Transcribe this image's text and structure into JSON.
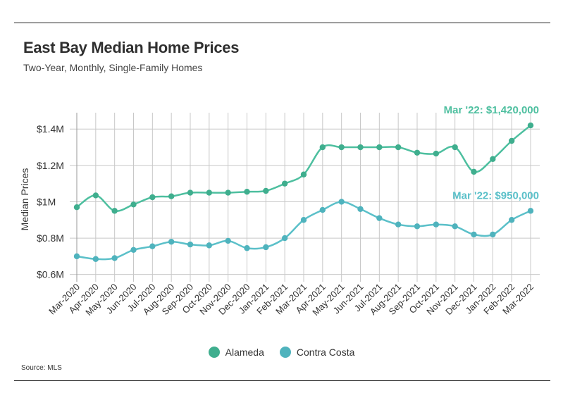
{
  "header": {
    "title": "East Bay Median Home Prices",
    "subtitle": "Two-Year, Monthly, Single-Family Homes"
  },
  "footer": {
    "source": "Source:  MLS"
  },
  "colors": {
    "alameda": "#4dbf9f",
    "contra_costa": "#5bc0c9",
    "grid": "#c8c8c8",
    "axis_text": "#333333"
  },
  "chart_data": {
    "type": "line",
    "title": "East Bay Median Home Prices",
    "subtitle": "Two-Year, Monthly, Single-Family Homes",
    "xlabel": "",
    "ylabel": "Median Prices",
    "ylim": [
      560000,
      1490000
    ],
    "yticks": [
      600000,
      800000,
      1000000,
      1200000,
      1400000
    ],
    "ytick_labels": [
      "$0.6M",
      "$0.8M",
      "$1M",
      "$1.2M",
      "$1.4M"
    ],
    "grid": "vertical and horizontal",
    "legend_position": "bottom-center",
    "categories": [
      "Mar-2020",
      "Apr-2020",
      "May-2020",
      "Jun-2020",
      "Jul-2020",
      "Aug-2020",
      "Sep-2020",
      "Oct-2020",
      "Nov-2020",
      "Dec-2020",
      "Jan-2021",
      "Feb-2021",
      "Mar-2021",
      "Apr-2021",
      "May-2021",
      "Jun-2021",
      "Jul-2021",
      "Aug-2021",
      "Sep-2021",
      "Oct-2021",
      "Nov-2021",
      "Dec-2021",
      "Jan-2022",
      "Feb-2022",
      "Mar-2022"
    ],
    "series": [
      {
        "name": "Alameda",
        "color": "#4dbf9f",
        "values": [
          970000,
          1035000,
          950000,
          985000,
          1025000,
          1030000,
          1050000,
          1050000,
          1050000,
          1055000,
          1060000,
          1100000,
          1150000,
          1300000,
          1300000,
          1300000,
          1300000,
          1300000,
          1270000,
          1265000,
          1300000,
          1165000,
          1235000,
          1335000,
          1420000
        ]
      },
      {
        "name": "Contra Costa",
        "color": "#5bc0c9",
        "values": [
          700000,
          685000,
          690000,
          735000,
          755000,
          780000,
          765000,
          760000,
          785000,
          745000,
          750000,
          800000,
          900000,
          955000,
          1000000,
          960000,
          910000,
          875000,
          865000,
          875000,
          865000,
          820000,
          820000,
          900000,
          950000
        ]
      }
    ],
    "annotations": [
      {
        "series": 0,
        "index": 24,
        "text": "Mar '22: $1,420,000"
      },
      {
        "series": 1,
        "index": 24,
        "text": "Mar '22: $950,000"
      }
    ]
  }
}
